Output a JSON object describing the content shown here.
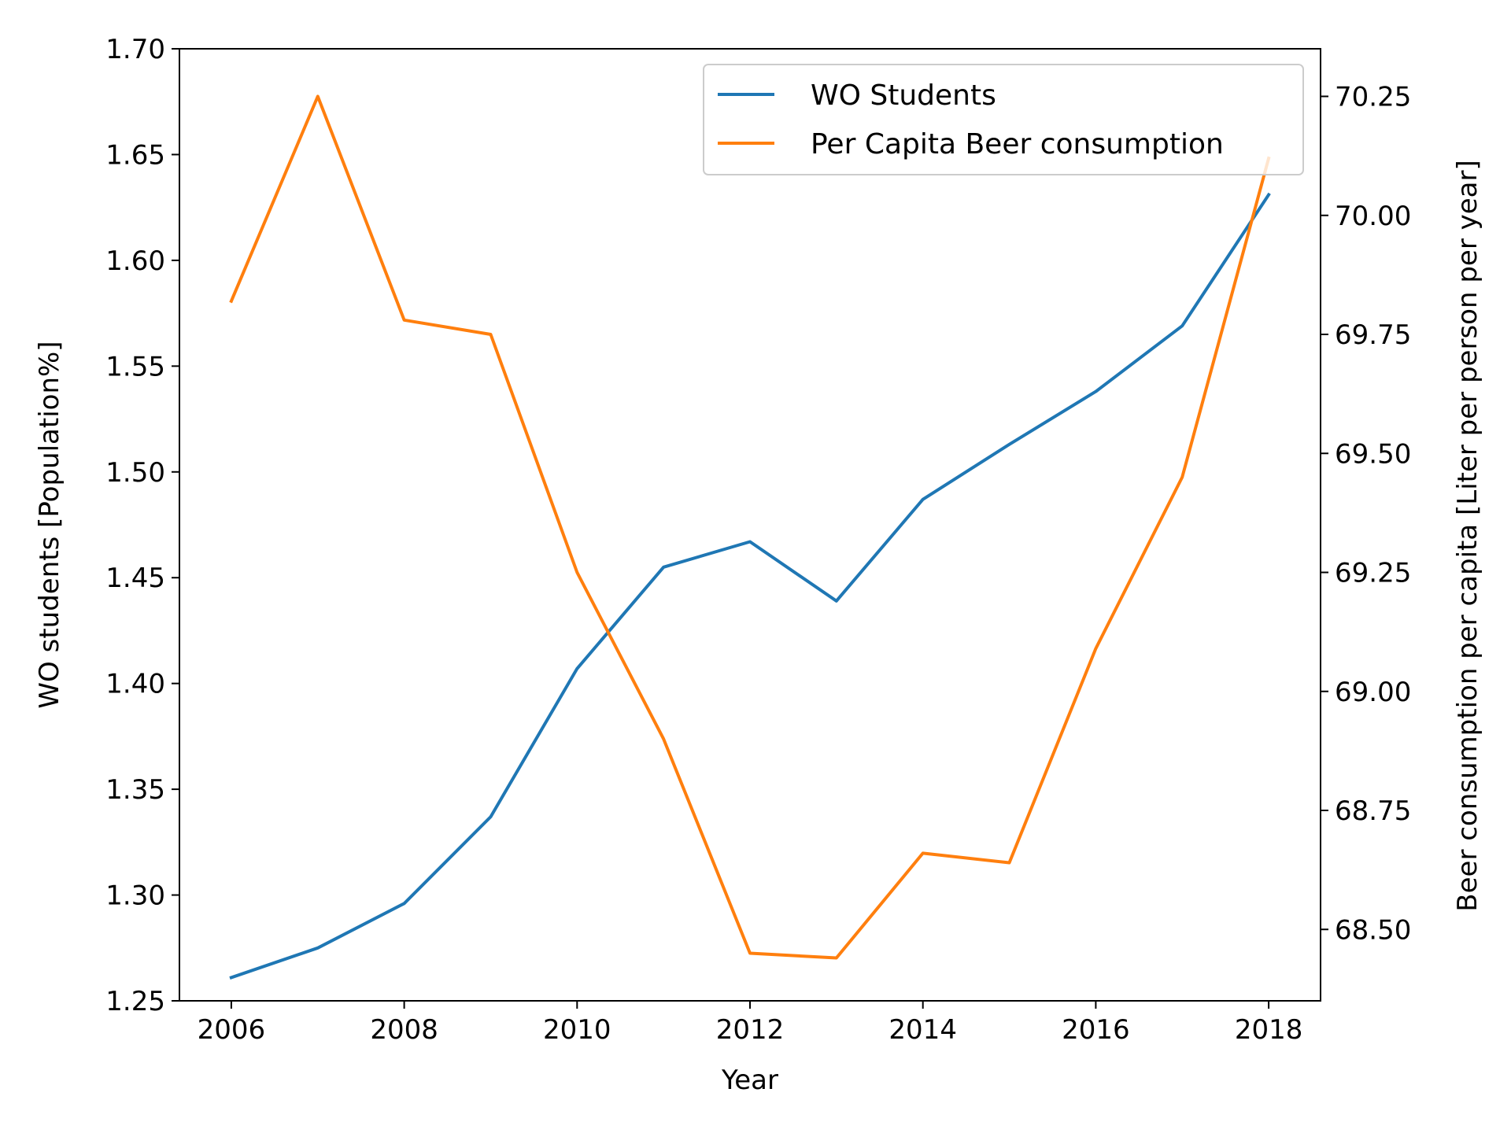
{
  "chart_data": {
    "type": "line",
    "title": "",
    "xlabel": "Year",
    "ylabel_left": "WO students [Population%]",
    "ylabel_right": "Beer consumption per capita [Liter per person per year]",
    "x": [
      2006,
      2007,
      2008,
      2009,
      2010,
      2011,
      2012,
      2013,
      2014,
      2015,
      2016,
      2017,
      2018
    ],
    "xlim": [
      2005.4,
      2018.6
    ],
    "xticks": [
      2006,
      2008,
      2010,
      2012,
      2014,
      2016,
      2018
    ],
    "ylim_left": [
      1.25,
      1.7
    ],
    "yticks_left": [
      "1.25",
      "1.30",
      "1.35",
      "1.40",
      "1.45",
      "1.50",
      "1.55",
      "1.60",
      "1.65",
      "1.70"
    ],
    "ylim_right": [
      68.35,
      70.35
    ],
    "yticks_right": [
      "68.50",
      "68.75",
      "69.00",
      "69.25",
      "69.50",
      "69.75",
      "70.00",
      "70.25"
    ],
    "legend_position": "top-right",
    "grid": false,
    "series": [
      {
        "name": "WO Students",
        "axis": "left",
        "color": "#1f77b4",
        "values": [
          1.261,
          1.275,
          1.296,
          1.337,
          1.407,
          1.455,
          1.467,
          1.439,
          1.487,
          1.513,
          1.538,
          1.569,
          1.631
        ]
      },
      {
        "name": "Per Capita Beer consumption",
        "axis": "right",
        "color": "#ff7f0e",
        "values": [
          69.82,
          70.25,
          69.78,
          69.75,
          69.25,
          68.9,
          68.45,
          68.44,
          68.66,
          68.64,
          69.09,
          69.45,
          70.12
        ]
      }
    ]
  }
}
